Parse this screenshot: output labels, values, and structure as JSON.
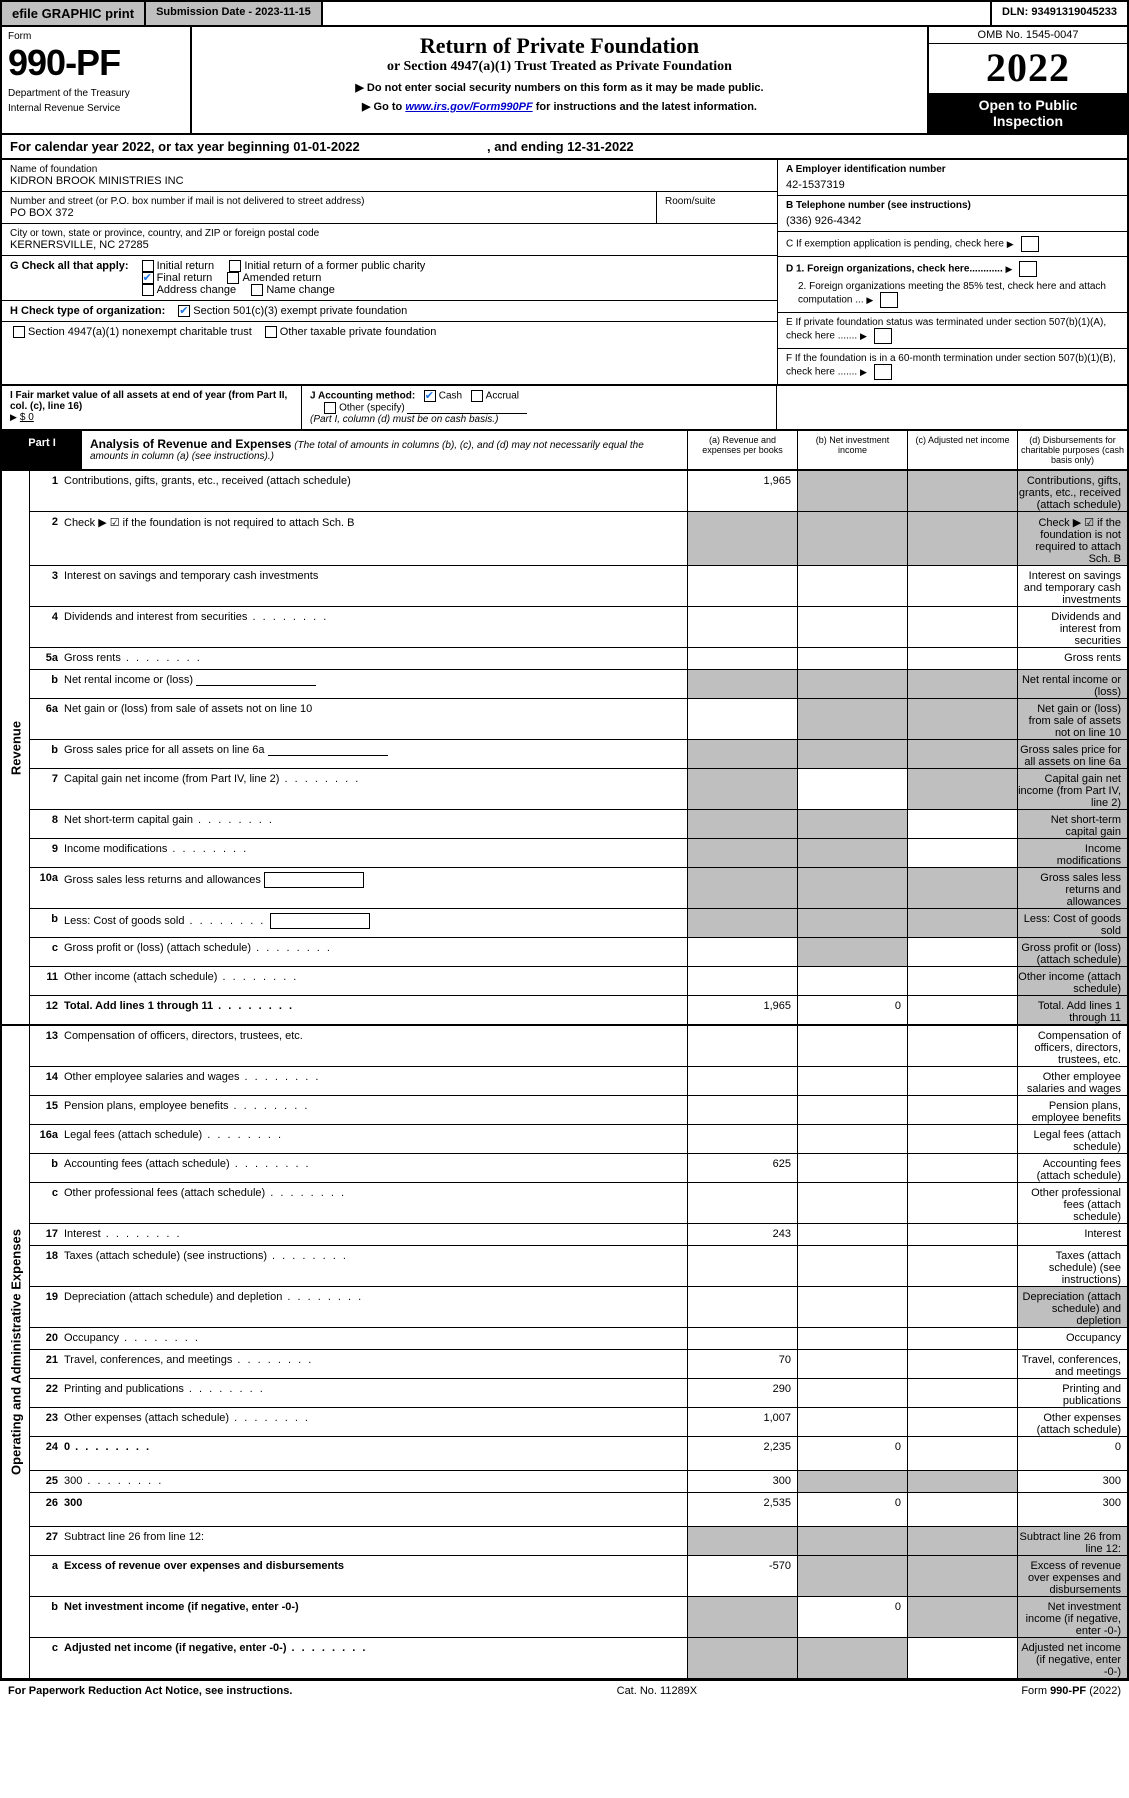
{
  "topbar": {
    "efile": "efile GRAPHIC print",
    "subdate_label": "Submission Date - ",
    "subdate": "2023-11-15",
    "dln_label": "DLN: ",
    "dln": "93491319045233"
  },
  "formhead": {
    "form_word": "Form",
    "form_no": "990-PF",
    "dept1": "Department of the Treasury",
    "dept2": "Internal Revenue Service",
    "title": "Return of Private Foundation",
    "subtitle": "or Section 4947(a)(1) Trust Treated as Private Foundation",
    "instr1": "▶ Do not enter social security numbers on this form as it may be made public.",
    "instr2_pre": "▶ Go to ",
    "instr2_link": "www.irs.gov/Form990PF",
    "instr2_post": " for instructions and the latest information.",
    "omb": "OMB No. 1545-0047",
    "year": "2022",
    "open1": "Open to Public",
    "open2": "Inspection"
  },
  "cal": {
    "text_a": "For calendar year 2022, or tax year beginning ",
    "begin": "01-01-2022",
    "text_b": ", and ending ",
    "end": "12-31-2022"
  },
  "id": {
    "name_label": "Name of foundation",
    "name": "KIDRON BROOK MINISTRIES INC",
    "addr_label": "Number and street (or P.O. box number if mail is not delivered to street address)",
    "addr": "PO BOX 372",
    "room_label": "Room/suite",
    "room": "",
    "city_label": "City or town, state or province, country, and ZIP or foreign postal code",
    "city": "KERNERSVILLE, NC  27285",
    "ein_label": "A Employer identification number",
    "ein": "42-1537319",
    "tel_label": "B Telephone number (see instructions)",
    "tel": "(336) 926-4342",
    "c_label": "C If exemption application is pending, check here",
    "d1_label": "D 1. Foreign organizations, check here............",
    "d2_label": "2. Foreign organizations meeting the 85% test, check here and attach computation ...",
    "e_label": "E  If private foundation status was terminated under section 507(b)(1)(A), check here .......",
    "f_label": "F  If the foundation is in a 60-month termination under section 507(b)(1)(B), check here .......",
    "g_label": "G Check all that apply:",
    "g_opts": [
      "Initial return",
      "Final return",
      "Address change",
      "Initial return of a former public charity",
      "Amended return",
      "Name change"
    ],
    "g_checked": [
      false,
      true,
      false,
      false,
      false,
      false
    ],
    "h_label": "H Check type of organization:",
    "h_opts": [
      "Section 501(c)(3) exempt private foundation",
      "Section 4947(a)(1) nonexempt charitable trust",
      "Other taxable private foundation"
    ],
    "h_checked": [
      true,
      false,
      false
    ],
    "i_label": "I Fair market value of all assets at end of year (from Part II, col. (c), line 16)",
    "i_val": "$  0",
    "j_label": "J Accounting method:",
    "j_opts": [
      "Cash",
      "Accrual",
      "Other (specify)"
    ],
    "j_checked": [
      true,
      false,
      false
    ],
    "j_note": "(Part I, column (d) must be on cash basis.)"
  },
  "part1": {
    "label": "Part I",
    "title": "Analysis of Revenue and Expenses",
    "note": "(The total of amounts in columns (b), (c), and (d) may not necessarily equal the amounts in column (a) (see instructions).)",
    "col_a": "(a)  Revenue and expenses per books",
    "col_b": "(b)  Net investment income",
    "col_c": "(c)  Adjusted net income",
    "col_d": "(d)  Disbursements for charitable purposes (cash basis only)"
  },
  "side": {
    "rev": "Revenue",
    "exp": "Operating and Administrative Expenses"
  },
  "rows": [
    {
      "n": "1",
      "d": "Contributions, gifts, grants, etc., received (attach schedule)",
      "a": "1,965",
      "shade_b": true,
      "shade_c": true,
      "shade_d": true,
      "tall": true
    },
    {
      "n": "2",
      "d": "Check ▶ ☑ if the foundation is not required to attach Sch. B",
      "a": "",
      "allshade_abcd": true,
      "tall": true,
      "bold_not": true
    },
    {
      "n": "3",
      "d": "Interest on savings and temporary cash investments",
      "a": ""
    },
    {
      "n": "4",
      "d": "Dividends and interest from securities",
      "a": "",
      "dots": true
    },
    {
      "n": "5a",
      "d": "Gross rents",
      "a": "",
      "dots": true
    },
    {
      "n": "b",
      "d": "Net rental income or (loss)",
      "a": "",
      "field": true,
      "allshade_abcd": true
    },
    {
      "n": "6a",
      "d": "Net gain or (loss) from sale of assets not on line 10",
      "a": "",
      "shade_b": true,
      "shade_c": true,
      "shade_d": true
    },
    {
      "n": "b",
      "d": "Gross sales price for all assets on line 6a",
      "a": "",
      "field": true,
      "allshade_abcd": true
    },
    {
      "n": "7",
      "d": "Capital gain net income (from Part IV, line 2)",
      "a": "",
      "dots": true,
      "shade_a": true,
      "shade_c": true,
      "shade_d": true
    },
    {
      "n": "8",
      "d": "Net short-term capital gain",
      "a": "",
      "dots": true,
      "shade_a": true,
      "shade_b": true,
      "shade_d": true
    },
    {
      "n": "9",
      "d": "Income modifications",
      "a": "",
      "dots": true,
      "shade_a": true,
      "shade_b": true,
      "shade_d": true
    },
    {
      "n": "10a",
      "d": "Gross sales less returns and allowances",
      "a": "",
      "box": true,
      "allshade_abcd": true
    },
    {
      "n": "b",
      "d": "Less: Cost of goods sold",
      "a": "",
      "dots": true,
      "box": true,
      "allshade_abcd": true
    },
    {
      "n": "c",
      "d": "Gross profit or (loss) (attach schedule)",
      "a": "",
      "dots": true,
      "shade_b": true,
      "shade_d": true
    },
    {
      "n": "11",
      "d": "Other income (attach schedule)",
      "a": "",
      "dots": true,
      "shade_d": true
    },
    {
      "n": "12",
      "d": "Total. Add lines 1 through 11",
      "a": "1,965",
      "b": "0",
      "dots": true,
      "bold": true,
      "shade_d": true
    }
  ],
  "erows": [
    {
      "n": "13",
      "d": "Compensation of officers, directors, trustees, etc.",
      "a": ""
    },
    {
      "n": "14",
      "d": "Other employee salaries and wages",
      "a": "",
      "dots": true
    },
    {
      "n": "15",
      "d": "Pension plans, employee benefits",
      "a": "",
      "dots": true
    },
    {
      "n": "16a",
      "d": "Legal fees (attach schedule)",
      "a": "",
      "dots": true
    },
    {
      "n": "b",
      "d": "Accounting fees (attach schedule)",
      "a": "625",
      "dots": true
    },
    {
      "n": "c",
      "d": "Other professional fees (attach schedule)",
      "a": "",
      "dots": true
    },
    {
      "n": "17",
      "d": "Interest",
      "a": "243",
      "dots": true
    },
    {
      "n": "18",
      "d": "Taxes (attach schedule) (see instructions)",
      "a": "",
      "dots": true
    },
    {
      "n": "19",
      "d": "Depreciation (attach schedule) and depletion",
      "a": "",
      "dots": true,
      "shade_d": true
    },
    {
      "n": "20",
      "d": "Occupancy",
      "a": "",
      "dots": true
    },
    {
      "n": "21",
      "d": "Travel, conferences, and meetings",
      "a": "70",
      "dots": true
    },
    {
      "n": "22",
      "d": "Printing and publications",
      "a": "290",
      "dots": true
    },
    {
      "n": "23",
      "d": "Other expenses (attach schedule)",
      "a": "1,007",
      "dots": true
    },
    {
      "n": "24",
      "d": "0",
      "a": "2,235",
      "b": "0",
      "dots": true,
      "bold": true,
      "tall": true
    },
    {
      "n": "25",
      "d": "300",
      "a": "300",
      "dots": true,
      "shade_b": true,
      "shade_c": true
    },
    {
      "n": "26",
      "d": "300",
      "a": "2,535",
      "b": "0",
      "bold": true,
      "tall": true
    },
    {
      "n": "27",
      "d": "Subtract line 26 from line 12:",
      "a": "",
      "allshade_abcd": true
    },
    {
      "n": "a",
      "d": "Excess of revenue over expenses and disbursements",
      "a": "-570",
      "bold": true,
      "shade_b": true,
      "shade_c": true,
      "shade_d": true,
      "tall": true
    },
    {
      "n": "b",
      "d": "Net investment income (if negative, enter -0-)",
      "a": "",
      "b": "0",
      "bold": true,
      "shade_a": true,
      "shade_c": true,
      "shade_d": true
    },
    {
      "n": "c",
      "d": "Adjusted net income (if negative, enter -0-)",
      "a": "",
      "bold": true,
      "shade_a": true,
      "shade_b": true,
      "shade_d": true,
      "dots": true
    }
  ],
  "footer": {
    "left": "For Paperwork Reduction Act Notice, see instructions.",
    "mid": "Cat. No. 11289X",
    "right": "Form 990-PF (2022)"
  },
  "colors": {
    "shade": "#bfbfbf",
    "link": "#0000cc",
    "check": "#1a73e8"
  }
}
